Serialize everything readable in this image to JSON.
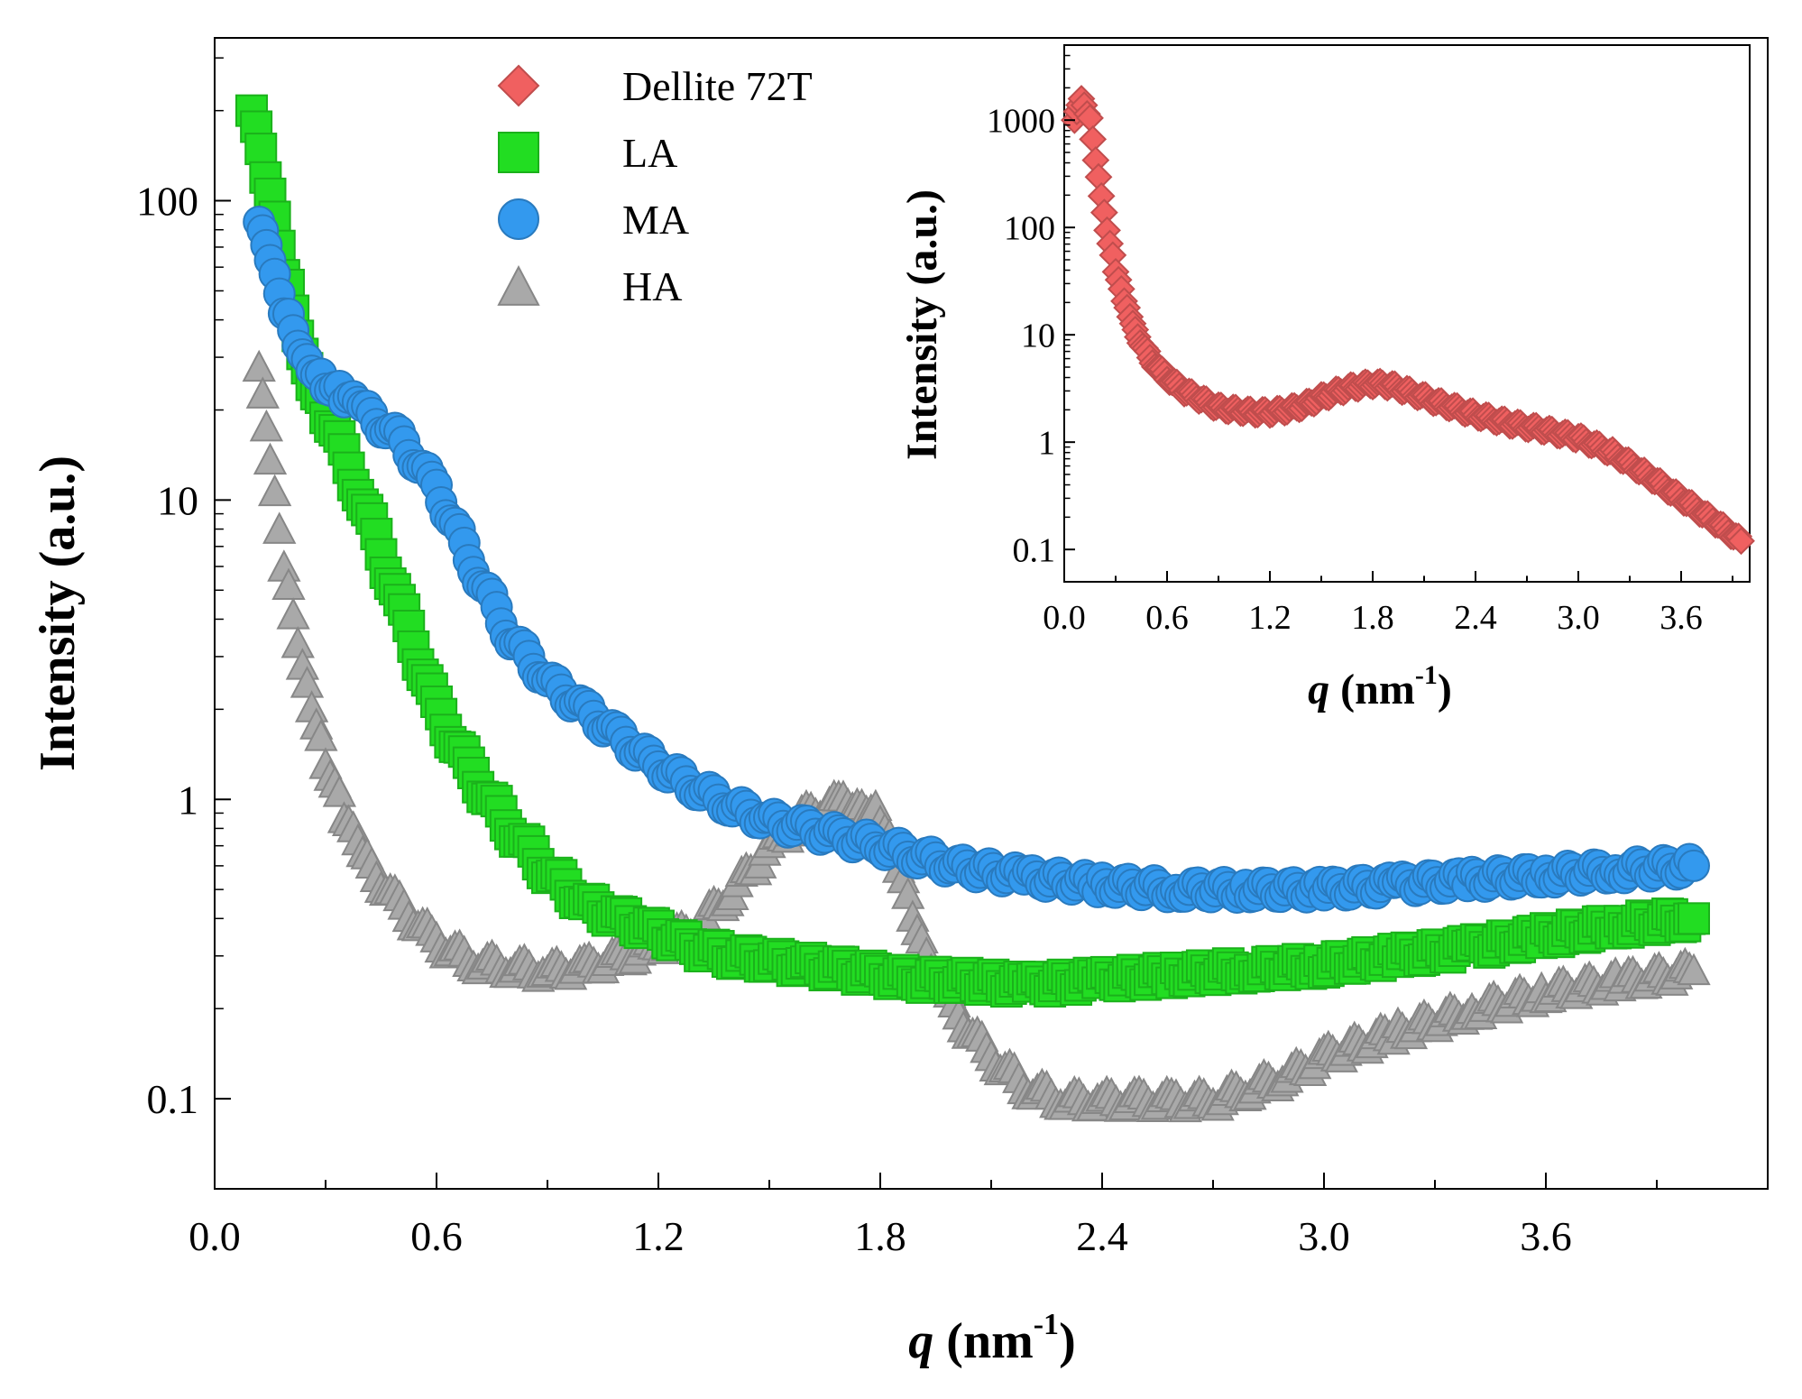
{
  "chart_data": [
    {
      "type": "scatter",
      "panel": "main",
      "xlabel": "q (nm-1)",
      "xlabel_var": "q",
      "xlabel_unit": "nm",
      "xlabel_exp": "-1",
      "ylabel": "Intensity (a.u.)",
      "yscale": "log",
      "xlim": [
        0.0,
        4.2
      ],
      "ylim": [
        0.05,
        350
      ],
      "xticks": [
        0.0,
        0.6,
        1.2,
        1.8,
        2.4,
        3.0,
        3.6
      ],
      "xtick_labels": [
        "0.0",
        "0.6",
        "1.2",
        "1.8",
        "2.4",
        "3.0",
        "3.6"
      ],
      "yticks": [
        0.1,
        1,
        10,
        100
      ],
      "ytick_labels": [
        "0.1",
        "1",
        "10",
        "100"
      ],
      "legend_position": "top-center",
      "legend": [
        {
          "label": "Dellite 72T",
          "marker": "diamond",
          "color": "#f06060"
        },
        {
          "label": "LA",
          "marker": "square",
          "color": "#22dd22"
        },
        {
          "label": "MA",
          "marker": "circle",
          "color": "#3399ee"
        },
        {
          "label": "HA",
          "marker": "triangle",
          "color": "#a9a9a9"
        }
      ],
      "series": [
        {
          "name": "HA",
          "marker": "triangle",
          "color": "#a9a9a9",
          "x": [
            0.12,
            0.15,
            0.2,
            0.25,
            0.3,
            0.35,
            0.4,
            0.5,
            0.6,
            0.7,
            0.8,
            0.9,
            1.0,
            1.1,
            1.2,
            1.3,
            1.4,
            1.5,
            1.6,
            1.7,
            1.75,
            1.8,
            1.85,
            1.9,
            2.0,
            2.1,
            2.2,
            2.3,
            2.4,
            2.5,
            2.6,
            2.7,
            2.8,
            2.9,
            3.0,
            3.2,
            3.4,
            3.6,
            3.8,
            4.0
          ],
          "y": [
            28,
            13,
            5,
            2.5,
            1.4,
            0.9,
            0.65,
            0.45,
            0.34,
            0.29,
            0.28,
            0.27,
            0.28,
            0.3,
            0.33,
            0.38,
            0.5,
            0.7,
            0.9,
            1.0,
            1.0,
            0.9,
            0.6,
            0.35,
            0.2,
            0.14,
            0.11,
            0.1,
            0.1,
            0.1,
            0.1,
            0.1,
            0.11,
            0.12,
            0.14,
            0.17,
            0.2,
            0.23,
            0.25,
            0.27
          ]
        },
        {
          "name": "LA",
          "marker": "square",
          "color": "#22dd22",
          "x": [
            0.1,
            0.15,
            0.2,
            0.25,
            0.3,
            0.4,
            0.5,
            0.6,
            0.7,
            0.8,
            0.9,
            1.0,
            1.1,
            1.2,
            1.3,
            1.4,
            1.5,
            1.6,
            1.7,
            1.8,
            1.9,
            2.0,
            2.2,
            2.4,
            2.6,
            2.8,
            3.0,
            3.2,
            3.4,
            3.6,
            3.8,
            4.0
          ],
          "y": [
            200,
            100,
            50,
            28,
            20,
            10,
            4.5,
            2.0,
            1.2,
            0.8,
            0.58,
            0.45,
            0.4,
            0.36,
            0.32,
            0.3,
            0.29,
            0.28,
            0.27,
            0.26,
            0.25,
            0.25,
            0.24,
            0.25,
            0.26,
            0.27,
            0.28,
            0.3,
            0.32,
            0.35,
            0.38,
            0.4
          ]
        },
        {
          "name": "MA",
          "marker": "circle",
          "color": "#3399ee",
          "x": [
            0.12,
            0.15,
            0.2,
            0.25,
            0.3,
            0.35,
            0.4,
            0.5,
            0.6,
            0.7,
            0.8,
            0.9,
            1.0,
            1.1,
            1.2,
            1.3,
            1.4,
            1.5,
            1.6,
            1.7,
            1.8,
            1.9,
            2.0,
            2.2,
            2.4,
            2.6,
            2.8,
            3.0,
            3.2,
            3.4,
            3.6,
            3.8,
            4.0
          ],
          "y": [
            85,
            60,
            40,
            30,
            25,
            22,
            20,
            16,
            11,
            6,
            3.5,
            2.5,
            2.0,
            1.6,
            1.3,
            1.1,
            0.95,
            0.85,
            0.8,
            0.75,
            0.7,
            0.65,
            0.6,
            0.55,
            0.52,
            0.5,
            0.5,
            0.5,
            0.52,
            0.54,
            0.56,
            0.58,
            0.6
          ]
        }
      ]
    },
    {
      "type": "scatter",
      "panel": "inset",
      "xlabel": "q (nm-1)",
      "xlabel_var": "q",
      "xlabel_unit": "nm",
      "xlabel_exp": "-1",
      "ylabel": "Intensity (a.u.)",
      "yscale": "log",
      "xlim": [
        0.0,
        4.0
      ],
      "ylim": [
        0.05,
        5000
      ],
      "xticks": [
        0.0,
        0.6,
        1.2,
        1.8,
        2.4,
        3.0,
        3.6
      ],
      "xtick_labels": [
        "0.0",
        "0.6",
        "1.2",
        "1.8",
        "2.4",
        "3.0",
        "3.6"
      ],
      "yticks": [
        0.1,
        1,
        10,
        100,
        1000
      ],
      "ytick_labels": [
        "0.1",
        "1",
        "10",
        "100",
        "1000"
      ],
      "series": [
        {
          "name": "Dellite 72T",
          "marker": "diamond",
          "color": "#f06060",
          "x": [
            0.06,
            0.1,
            0.15,
            0.2,
            0.25,
            0.3,
            0.35,
            0.4,
            0.5,
            0.6,
            0.7,
            0.8,
            0.9,
            1.0,
            1.1,
            1.2,
            1.3,
            1.4,
            1.5,
            1.6,
            1.7,
            1.8,
            1.9,
            2.0,
            2.2,
            2.4,
            2.6,
            2.8,
            3.0,
            3.2,
            3.4,
            3.6,
            3.8,
            3.95
          ],
          "y": [
            1000,
            1500,
            1000,
            300,
            100,
            40,
            20,
            12,
            6,
            4,
            3,
            2.5,
            2.1,
            2.0,
            1.9,
            1.9,
            2.0,
            2.2,
            2.6,
            3.0,
            3.3,
            3.5,
            3.4,
            3.0,
            2.3,
            1.8,
            1.5,
            1.3,
            1.1,
            0.8,
            0.5,
            0.3,
            0.18,
            0.12
          ]
        }
      ]
    }
  ]
}
